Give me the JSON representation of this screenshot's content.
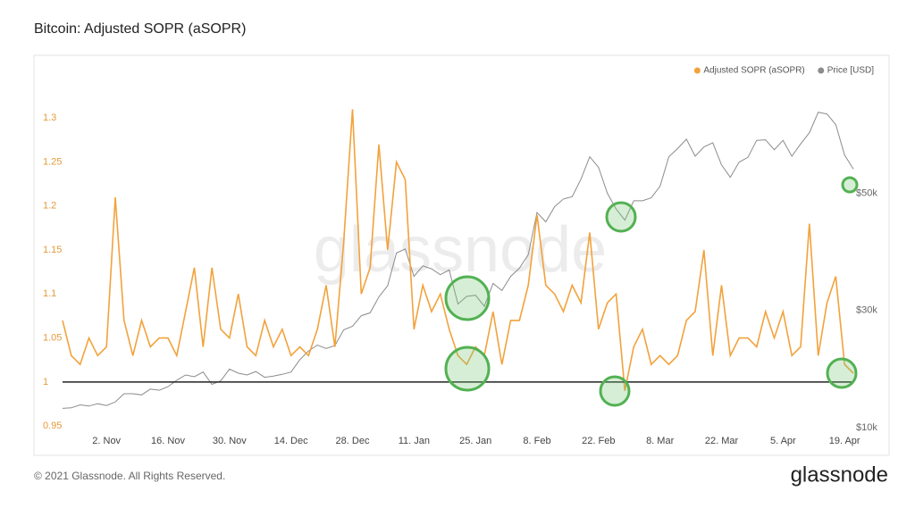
{
  "chart_data": {
    "type": "line",
    "title": "Bitcoin: Adjusted SOPR (aSOPR)",
    "footer": "© 2021 Glassnode. All Rights Reserved.",
    "brand": "glassnode",
    "watermark": "glassnode",
    "categories": [
      null,
      null,
      null,
      null,
      null,
      "2. Nov",
      null,
      null,
      null,
      null,
      null,
      null,
      "16. Nov",
      null,
      null,
      null,
      null,
      null,
      null,
      "30. Nov",
      null,
      null,
      null,
      null,
      null,
      null,
      "14. Dec",
      null,
      null,
      null,
      null,
      null,
      null,
      "28. Dec",
      null,
      null,
      null,
      null,
      null,
      null,
      "11. Jan",
      null,
      null,
      null,
      null,
      null,
      null,
      "25. Jan",
      null,
      null,
      null,
      null,
      null,
      null,
      "8. Feb",
      null,
      null,
      null,
      null,
      null,
      null,
      "22. Feb",
      null,
      null,
      null,
      null,
      null,
      null,
      "8. Mar",
      null,
      null,
      null,
      null,
      null,
      null,
      "22. Mar",
      null,
      null,
      null,
      null,
      null,
      null,
      "5. Apr",
      null,
      null,
      null,
      null,
      null,
      null,
      "19. Apr",
      null
    ],
    "series": [
      {
        "name": "Adjusted SOPR (aSOPR)",
        "color": "#f2a23c",
        "axis": "y",
        "values": [
          1.07,
          1.03,
          1.02,
          1.05,
          1.03,
          1.04,
          1.21,
          1.07,
          1.03,
          1.07,
          1.04,
          1.05,
          1.05,
          1.03,
          1.08,
          1.13,
          1.04,
          1.13,
          1.06,
          1.05,
          1.1,
          1.04,
          1.03,
          1.07,
          1.04,
          1.06,
          1.03,
          1.04,
          1.03,
          1.06,
          1.11,
          1.04,
          1.16,
          1.31,
          1.1,
          1.13,
          1.27,
          1.15,
          1.25,
          1.23,
          1.06,
          1.11,
          1.08,
          1.1,
          1.06,
          1.03,
          1.02,
          1.04,
          1.03,
          1.08,
          1.02,
          1.07,
          1.07,
          1.11,
          1.19,
          1.11,
          1.1,
          1.08,
          1.11,
          1.09,
          1.17,
          1.06,
          1.09,
          1.1,
          0.99,
          1.04,
          1.06,
          1.02,
          1.03,
          1.02,
          1.03,
          1.07,
          1.08,
          1.15,
          1.03,
          1.11,
          1.03,
          1.05,
          1.05,
          1.04,
          1.08,
          1.05,
          1.08,
          1.03,
          1.04,
          1.18,
          1.03,
          1.09,
          1.12,
          1.02,
          1.01
        ]
      },
      {
        "name": "Price [USD]",
        "color": "#8c8c8c",
        "axis": "y2",
        "values": [
          13000,
          13100,
          13600,
          13400,
          13800,
          13500,
          14100,
          15500,
          15500,
          15300,
          16300,
          16100,
          16700,
          17800,
          18700,
          18400,
          19200,
          17100,
          17700,
          19700,
          19000,
          18700,
          19300,
          18300,
          18500,
          18800,
          19200,
          21300,
          22800,
          23800,
          23200,
          23700,
          26400,
          27000,
          28800,
          29300,
          32000,
          33900,
          39500,
          40200,
          35500,
          37300,
          36800,
          35800,
          36600,
          30800,
          32100,
          32300,
          30400,
          34300,
          33100,
          35500,
          36900,
          39200,
          46400,
          44800,
          47400,
          48700,
          49100,
          52100,
          55900,
          54100,
          49700,
          47000,
          45100,
          48400,
          48400,
          48900,
          50900,
          55900,
          57300,
          58900,
          56000,
          57600,
          58300,
          54500,
          52400,
          55000,
          55800,
          58700,
          58800,
          57100,
          58700,
          56000,
          58100,
          60000,
          63500,
          63200,
          61400,
          56200,
          53800
        ]
      }
    ],
    "ylim": [
      0.94,
      1.35
    ],
    "yticks": [
      0.95,
      1,
      1.05,
      1.1,
      1.15,
      1.2,
      1.25,
      1.3
    ],
    "y2lim": [
      8500,
      70000
    ],
    "y2ticks": [
      {
        "value": 10000,
        "label": "$10k"
      },
      {
        "value": 30000,
        "label": "$30k"
      },
      {
        "value": 50000,
        "label": "$50k"
      }
    ],
    "reference_line": 1,
    "legend": "top-right",
    "grid": false
  }
}
